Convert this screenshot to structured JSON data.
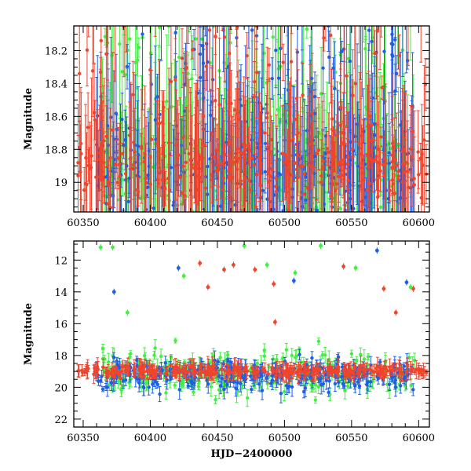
{
  "colors": {
    "green": "#44ee44",
    "blue": "#1f5fe6",
    "red": "#f0442c",
    "axis": "#000000"
  },
  "chart_data": [
    {
      "type": "scatter",
      "panel": "top",
      "title": "",
      "xlabel": "",
      "ylabel": "Magnitude",
      "xlim": [
        60343,
        60608
      ],
      "ylim": [
        19.18,
        18.05
      ],
      "y_inverted": true,
      "xticks": [
        60350,
        60400,
        60450,
        60500,
        60550,
        60600
      ],
      "xtick_labels": [
        "60350",
        "60400",
        "60450",
        "60500",
        "60550",
        "60600"
      ],
      "yticks": [
        18.2,
        18.4,
        18.6,
        18.8,
        19.0
      ],
      "ytick_labels": [
        "18.2",
        "18.4",
        "18.6",
        "18.8",
        "19"
      ],
      "error_bars": true,
      "grid": false,
      "legend": "none",
      "series": [
        {
          "color": "#44ee44",
          "x_range": [
            60363,
            60598
          ],
          "typical_mag": 18.92,
          "scatter": 0.35
        },
        {
          "color": "#1f5fe6",
          "x_range": [
            60360,
            60596
          ],
          "typical_mag": 18.93,
          "scatter": 0.3
        },
        {
          "color": "#f0442c",
          "x_range": [
            60346,
            60606
          ],
          "typical_mag": 18.9,
          "scatter": 0.2
        }
      ]
    },
    {
      "type": "scatter",
      "panel": "bottom",
      "title": "",
      "xlabel": "HJD−2400000",
      "ylabel": "Magnitude",
      "xlim": [
        60343,
        60608
      ],
      "ylim": [
        22.5,
        10.8
      ],
      "y_inverted": true,
      "xticks": [
        60350,
        60400,
        60450,
        60500,
        60550,
        60600
      ],
      "xtick_labels": [
        "60350",
        "60400",
        "60450",
        "60500",
        "60550",
        "60600"
      ],
      "yticks": [
        12,
        14,
        16,
        18,
        20,
        22
      ],
      "ytick_labels": [
        "12",
        "14",
        "16",
        "18",
        "20",
        "22"
      ],
      "error_bars": true,
      "grid": false,
      "legend": "none",
      "series": [
        {
          "color": "#44ee44",
          "x_range": [
            60363,
            60598
          ],
          "typical_mag": 19.1,
          "scatter": 1.2
        },
        {
          "color": "#1f5fe6",
          "x_range": [
            60360,
            60596
          ],
          "typical_mag": 19.2,
          "scatter": 0.9
        },
        {
          "color": "#f0442c",
          "x_range": [
            60346,
            60606
          ],
          "typical_mag": 18.95,
          "scatter": 0.3
        }
      ],
      "outliers": [
        {
          "x": 60363,
          "y": 11.2,
          "color": "#44ee44"
        },
        {
          "x": 60372,
          "y": 11.2,
          "color": "#44ee44"
        },
        {
          "x": 60383,
          "y": 15.3,
          "color": "#44ee44"
        },
        {
          "x": 60373,
          "y": 14.0,
          "color": "#1f5fe6"
        },
        {
          "x": 60421,
          "y": 12.5,
          "color": "#1f5fe6"
        },
        {
          "x": 60425,
          "y": 13.0,
          "color": "#44ee44"
        },
        {
          "x": 60437,
          "y": 12.2,
          "color": "#f0442c"
        },
        {
          "x": 60443,
          "y": 13.7,
          "color": "#f0442c"
        },
        {
          "x": 60455,
          "y": 12.6,
          "color": "#f0442c"
        },
        {
          "x": 60462,
          "y": 12.3,
          "color": "#f0442c"
        },
        {
          "x": 60470,
          "y": 11.1,
          "color": "#44ee44"
        },
        {
          "x": 60478,
          "y": 12.6,
          "color": "#f0442c"
        },
        {
          "x": 60487,
          "y": 12.3,
          "color": "#44ee44"
        },
        {
          "x": 60492,
          "y": 13.5,
          "color": "#f0442c"
        },
        {
          "x": 60493,
          "y": 15.9,
          "color": "#f0442c"
        },
        {
          "x": 60507,
          "y": 13.3,
          "color": "#1f5fe6"
        },
        {
          "x": 60508,
          "y": 12.8,
          "color": "#44ee44"
        },
        {
          "x": 60527,
          "y": 11.1,
          "color": "#44ee44"
        },
        {
          "x": 60544,
          "y": 12.4,
          "color": "#f0442c"
        },
        {
          "x": 60553,
          "y": 12.5,
          "color": "#44ee44"
        },
        {
          "x": 60569,
          "y": 11.4,
          "color": "#1f5fe6"
        },
        {
          "x": 60574,
          "y": 13.8,
          "color": "#f0442c"
        },
        {
          "x": 60583,
          "y": 15.3,
          "color": "#f0442c"
        },
        {
          "x": 60591,
          "y": 13.4,
          "color": "#1f5fe6"
        },
        {
          "x": 60596,
          "y": 13.8,
          "color": "#f0442c"
        },
        {
          "x": 60594,
          "y": 13.7,
          "color": "#44ee44"
        }
      ]
    }
  ]
}
